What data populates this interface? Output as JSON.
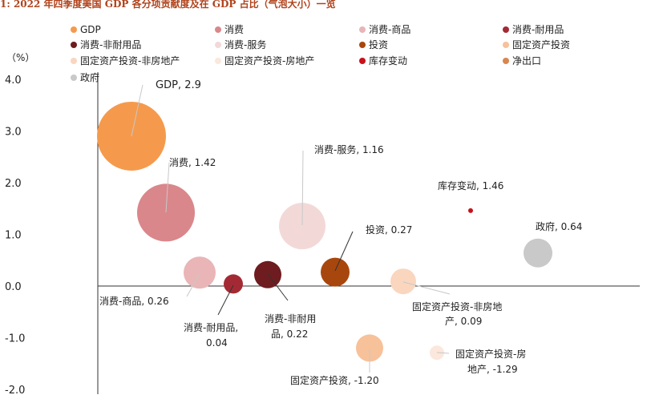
{
  "chart_data": {
    "type": "bubble",
    "title": "1: 2022 年四季度美国 GDP 各分项贡献度及在 GDP 占比（气泡大小）一览",
    "y_unit": "（%）",
    "ylim": [
      -2.0,
      4.0
    ],
    "yticks": [
      "4.0",
      "3.0",
      "2.0",
      "1.0",
      "0.0",
      "-1.0",
      "-2.0"
    ],
    "grid": false,
    "legend_position": "top",
    "series": [
      {
        "name": "GDP",
        "color": "#f59a4c",
        "value": 2.9,
        "label": "GDP, 2.9"
      },
      {
        "name": "消费",
        "color": "#d9878b",
        "value": 1.42,
        "label": "消费, 1.42"
      },
      {
        "name": "消费-商品",
        "color": "#e9b5b6",
        "value": 0.26,
        "label": "消费-商品, 0.26"
      },
      {
        "name": "消费-耐用品",
        "color": "#a32a34",
        "value": 0.04,
        "label": "消费-耐用品, 0.04"
      },
      {
        "name": "消费-非耐用品",
        "color": "#6e1c1f",
        "value": 0.22,
        "label": "消费-非耐用品, 0.22"
      },
      {
        "name": "消费-服务",
        "color": "#f2d9d8",
        "value": 1.16,
        "label": "消费-服务, 1.16"
      },
      {
        "name": "投资",
        "color": "#a8470d",
        "value": 0.27,
        "label": "投资, 0.27"
      },
      {
        "name": "固定资产投资",
        "color": "#f7c19a",
        "value": -1.2,
        "label": "固定资产投资, -1.20"
      },
      {
        "name": "固定资产投资-非房地产",
        "color": "#fad6bf",
        "value": 0.09,
        "label": "固定资产投资-非房地产, 0.09"
      },
      {
        "name": "固定资产投资-房地产",
        "color": "#fbe7dc",
        "value": -1.29,
        "label": "固定资产投资-房地产, -1.29"
      },
      {
        "name": "库存变动",
        "color": "#c8111b",
        "value": 1.46,
        "label": "库存变动, 1.46"
      },
      {
        "name": "净出口",
        "color": "#d9864f",
        "value": null,
        "label": ""
      },
      {
        "name": "政府",
        "color": "#c9c9c9",
        "value": 0.64,
        "label": "政府, 0.64"
      }
    ]
  },
  "labels": {
    "gdp": "GDP, 2.9",
    "consumption": "消费, 1.42",
    "services": "消费-服务, 1.16",
    "inventory": "库存变动, 1.46",
    "government": "政府, 0.64",
    "investment": "投资, 0.27",
    "goods": "消费-商品, 0.26",
    "durable": "消费-耐用品,",
    "durable_val": "0.04",
    "nondurable": "消费-非耐用",
    "nondurable_val": "品, 0.22",
    "nonres": "固定资产投资-非房地",
    "nonres_val": "产, 0.09",
    "fixed": "固定资产投资, -1.20",
    "res": "固定资产投资-房",
    "res_val": "地产, -1.29"
  }
}
